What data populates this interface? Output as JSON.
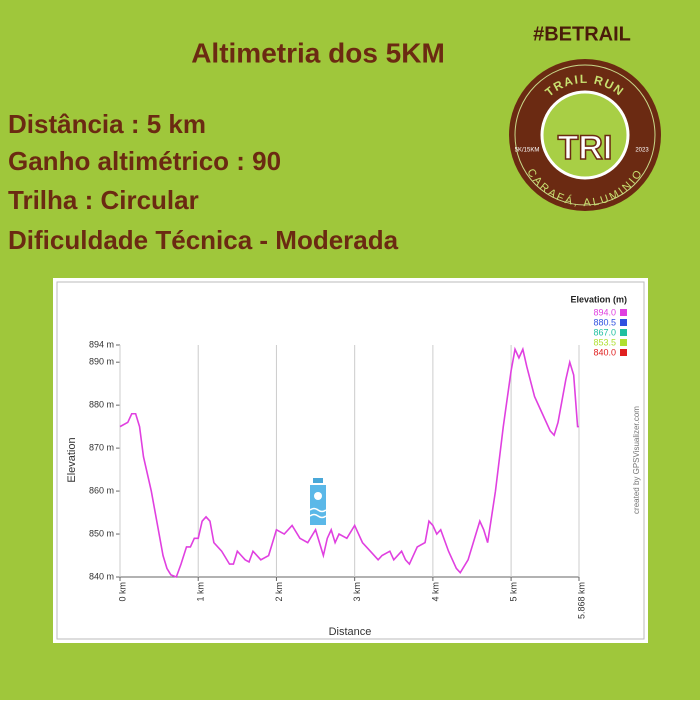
{
  "header": {
    "title": "Altimetria dos 5KM",
    "hashtag": "#BETRAIL",
    "info": [
      "Distância :  5 km",
      "Ganho altimétrico : 90",
      "Trilha : Circular",
      "Dificuldade Técnica - Moderada"
    ]
  },
  "logo": {
    "top": "TRAIL RUN",
    "center": "TRI",
    "left": "5K/15KM",
    "right": "2023",
    "bottom": "CARAFÁ, ALUMINIO"
  },
  "chart_data": {
    "type": "line",
    "xlabel": "Distance",
    "ylabel": "Elevation",
    "credit": "created by GPSVisualizer.com",
    "xlim": [
      0,
      5.868
    ],
    "ylim": [
      840,
      894
    ],
    "xticks": [
      {
        "value": 0,
        "label": "0 km"
      },
      {
        "value": 1,
        "label": "1 km"
      },
      {
        "value": 2,
        "label": "2 km"
      },
      {
        "value": 3,
        "label": "3 km"
      },
      {
        "value": 4,
        "label": "4 km"
      },
      {
        "value": 5,
        "label": "5 km"
      },
      {
        "value": 5.868,
        "label": "5.868 km"
      }
    ],
    "yticks": [
      {
        "value": 840,
        "label": "840 m"
      },
      {
        "value": 850,
        "label": "850 m"
      },
      {
        "value": 860,
        "label": "860 m"
      },
      {
        "value": 870,
        "label": "870 m"
      },
      {
        "value": 880,
        "label": "880 m"
      },
      {
        "value": 890,
        "label": "890 m"
      },
      {
        "value": 894,
        "label": "894 m"
      }
    ],
    "grid": "x",
    "legend": {
      "title": "Elevation (m)",
      "entries": [
        {
          "value": 894,
          "label": "894.0",
          "color": "#e040e0"
        },
        {
          "value": 880.5,
          "label": "880.5",
          "color": "#3050e0"
        },
        {
          "value": 867,
          "label": "867.0",
          "color": "#20c0a0"
        },
        {
          "value": 853.5,
          "label": "853.5",
          "color": "#b0e030"
        },
        {
          "value": 840,
          "label": "840.0",
          "color": "#e02020"
        }
      ]
    },
    "x": [
      0,
      0.1,
      0.15,
      0.2,
      0.25,
      0.3,
      0.4,
      0.5,
      0.55,
      0.6,
      0.65,
      0.72,
      0.78,
      0.85,
      0.9,
      0.95,
      1.0,
      1.05,
      1.1,
      1.15,
      1.2,
      1.3,
      1.4,
      1.45,
      1.5,
      1.55,
      1.6,
      1.65,
      1.7,
      1.8,
      1.9,
      2.0,
      2.1,
      2.2,
      2.3,
      2.4,
      2.5,
      2.55,
      2.6,
      2.65,
      2.7,
      2.75,
      2.8,
      2.9,
      3.0,
      3.05,
      3.1,
      3.2,
      3.3,
      3.35,
      3.45,
      3.5,
      3.6,
      3.65,
      3.7,
      3.8,
      3.9,
      3.95,
      4.0,
      4.05,
      4.1,
      4.2,
      4.3,
      4.35,
      4.45,
      4.55,
      4.6,
      4.65,
      4.7,
      4.8,
      4.9,
      5.0,
      5.05,
      5.1,
      5.15,
      5.2,
      5.3,
      5.4,
      5.5,
      5.55,
      5.6,
      5.7,
      5.75,
      5.8,
      5.85,
      5.868
    ],
    "values": [
      875,
      876,
      878,
      878,
      875,
      868,
      860,
      850,
      845,
      842,
      840.5,
      840,
      843,
      847,
      847,
      849,
      849,
      853,
      854,
      853,
      848,
      846,
      843,
      843,
      846,
      845,
      844,
      843.5,
      846,
      844,
      845,
      851,
      850,
      852,
      849,
      848,
      851,
      848,
      845,
      849,
      851,
      848,
      850,
      849,
      852,
      850,
      848,
      846,
      844,
      845,
      846,
      844,
      846,
      844,
      843,
      847,
      848,
      853,
      852,
      850,
      851,
      846,
      842,
      841,
      844,
      850,
      853,
      851,
      848,
      860,
      875,
      888,
      893,
      891,
      893,
      889,
      882,
      878,
      874,
      873,
      876,
      886,
      890,
      887,
      875,
      875
    ]
  }
}
